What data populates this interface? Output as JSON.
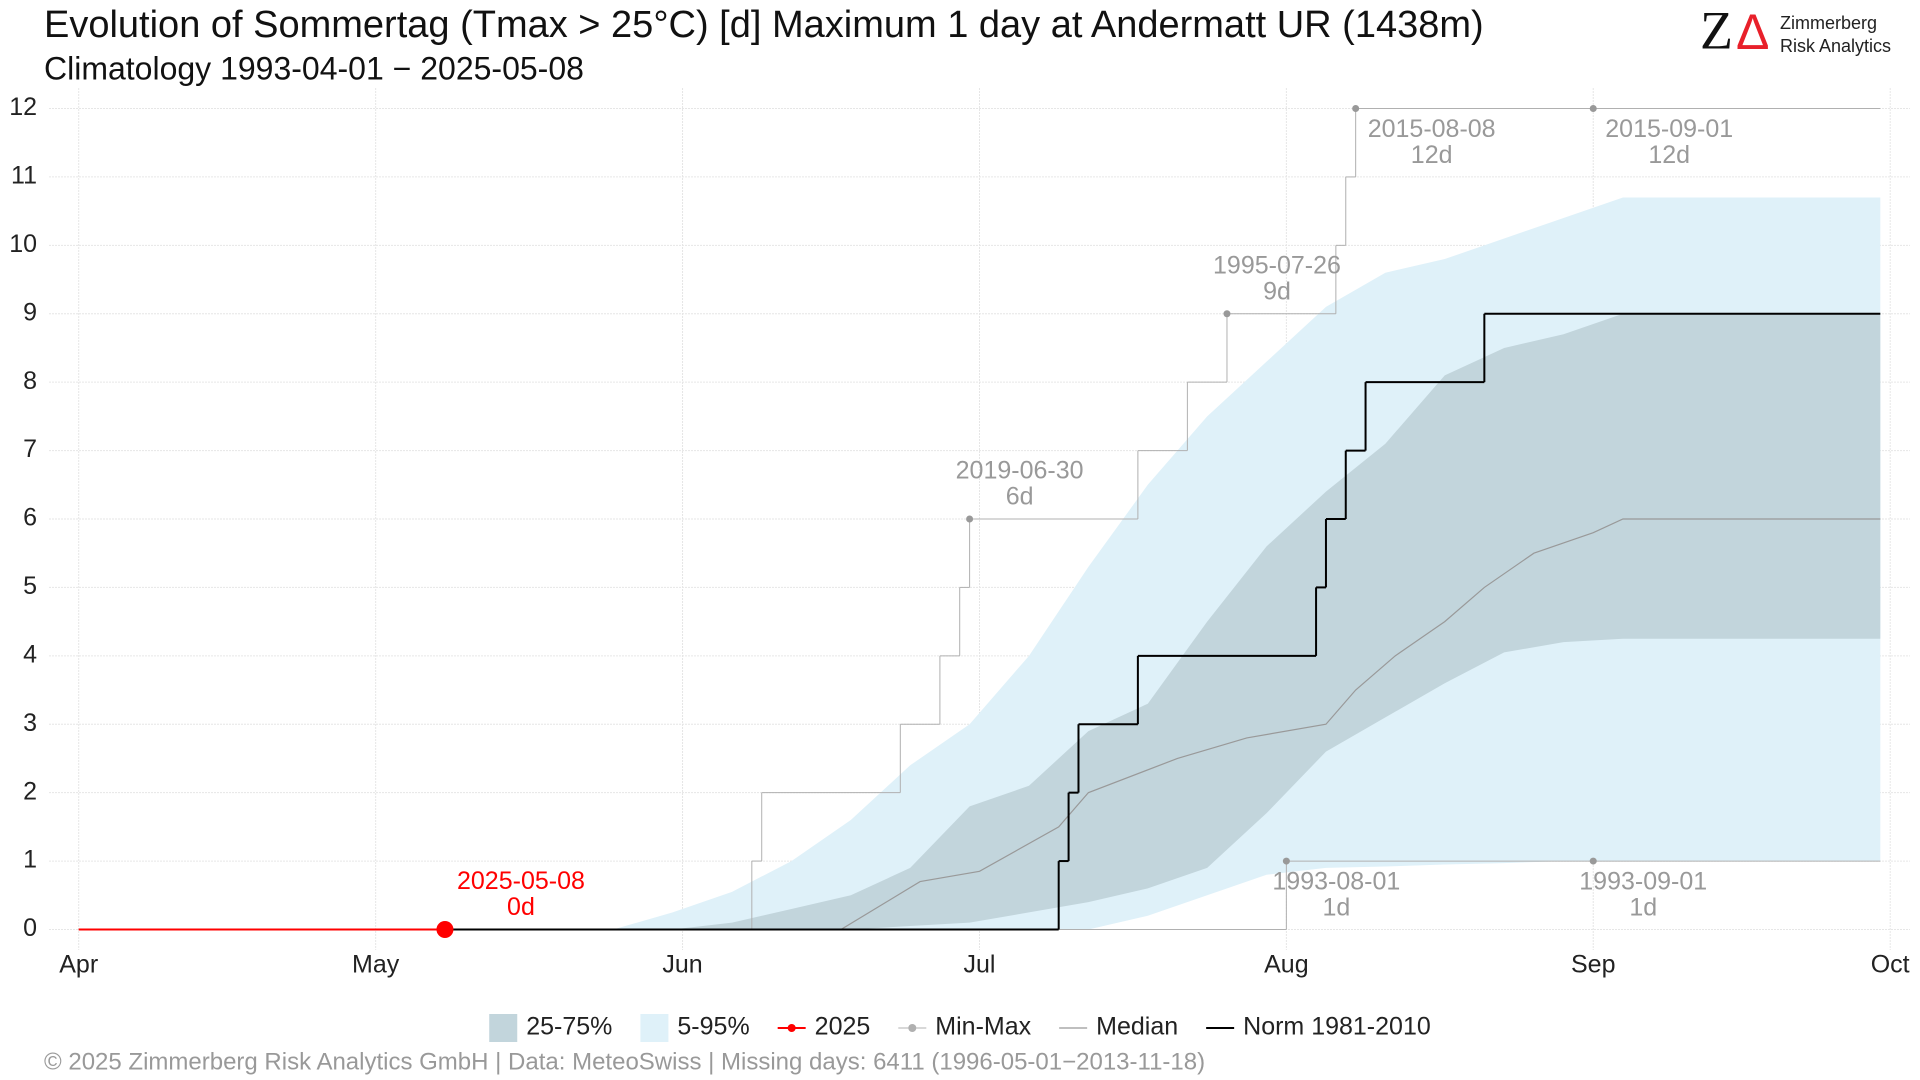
{
  "chart_data": {
    "type": "line",
    "title": "Evolution of Sommertag (Tmax > 25°C) [d] Maximum 1 day at Andermatt  UR (1438m)",
    "subtitle": "Climatology 1993-04-01 − 2025-05-08",
    "caption": "©  2025 Zimmerberg Risk Analytics GmbH | Data: MeteoSwiss | Missing days: 6411 (1996-05-01−2013-11-18)",
    "xlim": [
      -3,
      185
    ],
    "ylim": [
      -0.3,
      12.3
    ],
    "xticks": [
      {
        "value": 0,
        "label": "Apr"
      },
      {
        "value": 30,
        "label": "May"
      },
      {
        "value": 61,
        "label": "Jun"
      },
      {
        "value": 91,
        "label": "Jul"
      },
      {
        "value": 122,
        "label": "Aug"
      },
      {
        "value": 153,
        "label": "Sep"
      },
      {
        "value": 183,
        "label": "Oct"
      }
    ],
    "yticks": [
      0,
      1,
      2,
      3,
      4,
      5,
      6,
      7,
      8,
      9,
      10,
      11,
      12
    ],
    "grid": true,
    "bands": [
      {
        "name": "25-75%",
        "color": "#c2d5dc",
        "x": [
          54,
          60,
          66,
          72,
          78,
          84,
          90,
          96,
          102,
          108,
          114,
          120,
          126,
          132,
          138,
          144,
          150,
          156,
          162,
          182
        ],
        "lower": [
          0,
          0,
          0,
          0,
          0,
          0.05,
          0.1,
          0.25,
          0.4,
          0.6,
          0.9,
          1.7,
          2.6,
          3.1,
          3.6,
          4.05,
          4.2,
          4.25,
          4.25,
          4.25
        ],
        "upper": [
          0,
          0,
          0.1,
          0.3,
          0.5,
          0.9,
          1.8,
          2.1,
          2.9,
          3.3,
          4.5,
          5.6,
          6.4,
          7.1,
          8.1,
          8.5,
          8.7,
          9,
          9,
          9
        ]
      },
      {
        "name": "5-95%",
        "color": "#dff1f9",
        "x": [
          54,
          60,
          66,
          72,
          78,
          84,
          90,
          96,
          102,
          108,
          114,
          120,
          126,
          132,
          138,
          144,
          150,
          156,
          162,
          182
        ],
        "lower": [
          0,
          0,
          0,
          0,
          0,
          0,
          0,
          0,
          0,
          0.2,
          0.5,
          0.8,
          0.9,
          0.92,
          0.95,
          0.97,
          1,
          1,
          1,
          1
        ],
        "upper": [
          0,
          0.25,
          0.55,
          1,
          1.6,
          2.4,
          3,
          4,
          5.3,
          6.5,
          7.5,
          8.3,
          9.1,
          9.6,
          9.8,
          10.1,
          10.4,
          10.7,
          10.7,
          10.7
        ]
      }
    ],
    "series": [
      {
        "name": "2025",
        "color": "#ff0000",
        "width": 2,
        "marker": true,
        "step": false,
        "lines": [
          {
            "x": [
              0,
              37
            ],
            "values": [
              0,
              0
            ]
          }
        ]
      },
      {
        "name": "Min-Max",
        "color": "#b0b0b0",
        "width": 1,
        "marker": true,
        "step": true,
        "lines": [
          {
            "x": [
              0,
              68,
              69,
              83,
              87,
              89,
              90,
              107,
              112,
              116,
              127,
              128,
              129,
              182
            ],
            "values": [
              0,
              1,
              2,
              3,
              4,
              5,
              6,
              7,
              8,
              9,
              10,
              11,
              12,
              12
            ]
          },
          {
            "x": [
              0,
              122,
              182
            ],
            "values": [
              0,
              1,
              1
            ]
          }
        ]
      },
      {
        "name": "Median",
        "color": "#999999",
        "width": 1.2,
        "marker": false,
        "step": false,
        "lines": [
          {
            "x": [
              0,
              77,
              85,
              91,
              99,
              102,
              111,
              118,
              126,
              129,
              133,
              138,
              142,
              147,
              153,
              156,
              182
            ],
            "values": [
              0,
              0,
              0.7,
              0.85,
              1.5,
              2,
              2.5,
              2.8,
              3,
              3.5,
              4,
              4.5,
              5,
              5.5,
              5.8,
              6,
              6
            ]
          }
        ]
      },
      {
        "name": "Norm 1981-2010",
        "color": "#000000",
        "width": 2,
        "marker": false,
        "step": true,
        "lines": [
          {
            "x": [
              37,
              99,
              100,
              101,
              107,
              125,
              126,
              128,
              130,
              142,
              182
            ],
            "values": [
              0,
              1,
              2,
              3,
              4,
              5,
              6,
              7,
              8,
              9,
              9
            ]
          }
        ]
      }
    ],
    "annotations": [
      {
        "date": "2025-05-08",
        "label": "0d",
        "x": 37,
        "y": 0,
        "color": "#ff0000",
        "placement": "above"
      },
      {
        "date": "2019-06-30",
        "label": "6d",
        "x": 90,
        "y": 6,
        "color": "#999999",
        "placement": "above"
      },
      {
        "date": "1995-07-26",
        "label": "9d",
        "x": 116,
        "y": 9,
        "color": "#999999",
        "placement": "above"
      },
      {
        "date": "2015-08-08",
        "label": "12d",
        "x": 129,
        "y": 12,
        "color": "#999999",
        "placement": "below"
      },
      {
        "date": "2015-09-01",
        "label": "12d",
        "x": 153,
        "y": 12,
        "color": "#999999",
        "placement": "below"
      },
      {
        "date": "1993-08-01",
        "label": "1d",
        "x": 122,
        "y": 1,
        "color": "#999999",
        "placement": "below"
      },
      {
        "date": "1993-09-01",
        "label": "1d",
        "x": 153,
        "y": 1,
        "color": "#999999",
        "placement": "below"
      }
    ]
  },
  "logo": {
    "z": "Z",
    "delta": "Δ",
    "name": "Zimmerberg",
    "tagline": "Risk Analytics"
  }
}
